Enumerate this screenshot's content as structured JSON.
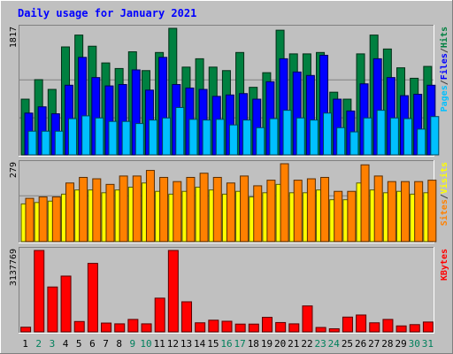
{
  "chart_data": {
    "type": "bar",
    "title": "Daily usage for January 2021",
    "categories": [
      "1",
      "2",
      "3",
      "4",
      "5",
      "6",
      "7",
      "8",
      "9",
      "10",
      "11",
      "12",
      "13",
      "14",
      "15",
      "16",
      "17",
      "18",
      "19",
      "20",
      "21",
      "22",
      "23",
      "24",
      "25",
      "26",
      "27",
      "28",
      "29",
      "30",
      "31"
    ],
    "weekend_days": [
      "2",
      "3",
      "9",
      "10",
      "16",
      "17",
      "23",
      "24",
      "30",
      "31"
    ],
    "panels": [
      {
        "id": "pages-files-hits",
        "ymax_label": "1817",
        "ylim": [
          0,
          1817
        ],
        "legend": [
          {
            "label": "Pages",
            "color": "#00c0ff"
          },
          {
            "label": "/",
            "color": "#404040"
          },
          {
            "label": "Files",
            "color": "#0000ff"
          },
          {
            "label": "/",
            "color": "#404040"
          },
          {
            "label": "Hits",
            "color": "#008040"
          }
        ],
        "series": [
          {
            "name": "Hits",
            "color": "#008040",
            "values": [
              800,
              1080,
              940,
              1550,
              1720,
              1560,
              1320,
              1240,
              1480,
              1210,
              1470,
              1817,
              1260,
              1380,
              1260,
              1210,
              1470,
              970,
              1180,
              1790,
              1450,
              1450,
              1470,
              900,
              800,
              1450,
              1720,
              1520,
              1250,
              1100,
              1270
            ]
          },
          {
            "name": "Files",
            "color": "#0000ff",
            "values": [
              600,
              690,
              590,
              1000,
              1400,
              1110,
              990,
              1010,
              1220,
              930,
              1400,
              1010,
              960,
              940,
              840,
              860,
              880,
              800,
              1050,
              1380,
              1190,
              1140,
              1430,
              800,
              630,
              1020,
              1380,
              1110,
              850,
              870,
              1000
            ]
          },
          {
            "name": "Pages",
            "color": "#00c0ff",
            "values": [
              340,
              340,
              340,
              520,
              560,
              530,
              480,
              480,
              450,
              500,
              530,
              680,
              510,
              500,
              510,
              430,
              500,
              390,
              520,
              640,
              530,
              500,
              600,
              390,
              330,
              530,
              640,
              530,
              520,
              370,
              550
            ]
          }
        ]
      },
      {
        "id": "sites-visits",
        "ymax_label": "279",
        "ylim": [
          0,
          279
        ],
        "legend": [
          {
            "label": "Sites",
            "color": "#ff8000"
          },
          {
            "label": "/",
            "color": "#404040"
          },
          {
            "label": "Visits",
            "color": "#ffff00"
          }
        ],
        "series": [
          {
            "name": "Visits",
            "color": "#ffff00",
            "values": [
              135,
              140,
              145,
              170,
              185,
              185,
              175,
              185,
              195,
              210,
              180,
              170,
              180,
              195,
              185,
              170,
              180,
              160,
              175,
              205,
              175,
              175,
              185,
              150,
              150,
              210,
              185,
              175,
              180,
              170,
              175
            ]
          },
          {
            "name": "Sites",
            "color": "#ff8000",
            "values": [
              155,
              160,
              160,
              210,
              230,
              225,
              205,
              235,
              235,
              255,
              230,
              215,
              230,
              245,
              230,
              210,
              235,
              200,
              220,
              279,
              220,
              225,
              230,
              180,
              180,
              275,
              235,
              215,
              215,
              215,
              220
            ]
          }
        ]
      },
      {
        "id": "kbytes",
        "ymax_label": "3137769",
        "ylim": [
          0,
          3137769
        ],
        "legend": [
          {
            "label": "KBytes",
            "color": "#ff0000"
          }
        ],
        "series": [
          {
            "name": "KBytes",
            "color": "#ff0000",
            "values": [
              180000,
              3137769,
              1730000,
              2150000,
              400000,
              2640000,
              340000,
              310000,
              480000,
              310000,
              1300000,
              3137769,
              1160000,
              350000,
              450000,
              410000,
              300000,
              300000,
              560000,
              360000,
              310000,
              1000000,
              170000,
              120000,
              570000,
              650000,
              350000,
              480000,
              230000,
              280000,
              380000
            ]
          }
        ]
      }
    ]
  }
}
